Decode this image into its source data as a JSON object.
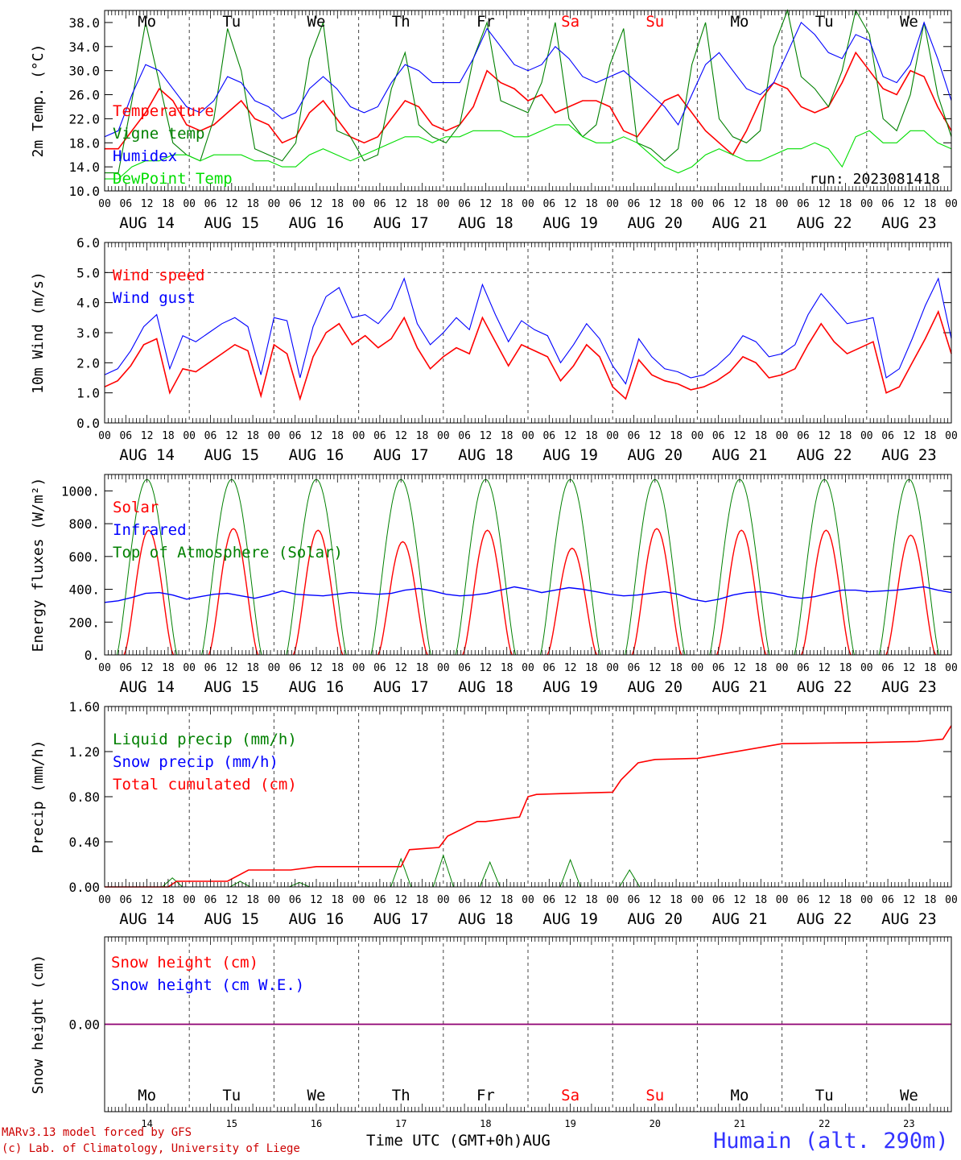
{
  "chart_data": {
    "type": "line",
    "days": [
      "14",
      "15",
      "16",
      "17",
      "18",
      "19",
      "20",
      "21",
      "22",
      "23"
    ],
    "day_names": [
      "Mo",
      "Tu",
      "We",
      "Th",
      "Fr",
      "Sa",
      "Su",
      "Mo",
      "Tu",
      "We"
    ],
    "weekend_days": [
      5,
      6
    ],
    "hour_ticks": [
      "00",
      "06",
      "12",
      "18"
    ],
    "hour_end": "00",
    "date_labels": [
      "AUG 14",
      "AUG 15",
      "AUG 16",
      "AUG 17",
      "AUG 18",
      "AUG 19",
      "AUG 20",
      "AUG 21",
      "AUG 22",
      "AUG 23"
    ],
    "panels": [
      {
        "id": "temperature",
        "ylabel": "2m Temp. (°C)",
        "ylim": [
          10,
          40
        ],
        "yticks": [
          "10.0",
          "14.0",
          "18.0",
          "22.0",
          "26.0",
          "30.0",
          "34.0",
          "38.0"
        ],
        "annotation": "run: 2023081418",
        "series": [
          {
            "name": "Temperature",
            "color": "#ff0000",
            "values": [
              17,
              17,
              20,
              23,
              27,
              25,
              21,
              20,
              21,
              23,
              25,
              22,
              21,
              18,
              19,
              23,
              25,
              22,
              19,
              18,
              19,
              22,
              25,
              24,
              21,
              20,
              21,
              24,
              30,
              28,
              27,
              25,
              26,
              23,
              24,
              25,
              25,
              24,
              20,
              19,
              22,
              25,
              26,
              23,
              20,
              18,
              16,
              20,
              25,
              28,
              27,
              24,
              23,
              24,
              28,
              33,
              30,
              27,
              26,
              30,
              29,
              24,
              20
            ]
          },
          {
            "name": "Vigne temp",
            "color": "#008000",
            "values": [
              13,
              13,
              25,
              38,
              28,
              18,
              16,
              15,
              22,
              37,
              30,
              17,
              16,
              15,
              18,
              32,
              38,
              20,
              19,
              15,
              16,
              27,
              33,
              21,
              19,
              18,
              21,
              32,
              38,
              25,
              24,
              23,
              28,
              38,
              22,
              19,
              21,
              31,
              37,
              18,
              17,
              15,
              17,
              31,
              38,
              22,
              19,
              18,
              20,
              34,
              40,
              29,
              27,
              24,
              30,
              40,
              36,
              22,
              20,
              26,
              38,
              26,
              19
            ]
          },
          {
            "name": "Humidex",
            "color": "#0000ff",
            "values": [
              19,
              20,
              26,
              31,
              30,
              27,
              24,
              23,
              25,
              29,
              28,
              25,
              24,
              22,
              23,
              27,
              29,
              27,
              24,
              23,
              24,
              28,
              31,
              30,
              28,
              28,
              28,
              32,
              37,
              34,
              31,
              30,
              31,
              34,
              32,
              29,
              28,
              29,
              30,
              28,
              26,
              24,
              21,
              26,
              31,
              33,
              30,
              27,
              26,
              28,
              33,
              38,
              36,
              33,
              32,
              36,
              35,
              29,
              28,
              31,
              38,
              32,
              25
            ]
          },
          {
            "name": "DewPoint Temp",
            "color": "#00dd00",
            "values": [
              12,
              12,
              14,
              15,
              15,
              16,
              16,
              15,
              16,
              16,
              16,
              15,
              15,
              14,
              14,
              16,
              17,
              16,
              15,
              16,
              17,
              18,
              19,
              19,
              18,
              19,
              19,
              20,
              20,
              20,
              19,
              19,
              20,
              21,
              21,
              19,
              18,
              18,
              19,
              18,
              16,
              14,
              13,
              14,
              16,
              17,
              16,
              15,
              15,
              16,
              17,
              17,
              18,
              17,
              14,
              19,
              20,
              18,
              18,
              20,
              20,
              18,
              17
            ]
          }
        ]
      },
      {
        "id": "wind",
        "ylabel": "10m Wind (m/s)",
        "ylim": [
          0,
          6
        ],
        "yticks": [
          "0.0",
          "1.0",
          "2.0",
          "3.0",
          "4.0",
          "5.0",
          "6.0"
        ],
        "dashed_at": 5,
        "series": [
          {
            "name": "Wind speed",
            "color": "#ff0000",
            "values": [
              1.2,
              1.4,
              1.9,
              2.6,
              2.8,
              1.0,
              1.8,
              1.7,
              2.0,
              2.3,
              2.6,
              2.4,
              0.9,
              2.6,
              2.3,
              0.8,
              2.2,
              3.0,
              3.3,
              2.6,
              2.9,
              2.5,
              2.8,
              3.5,
              2.5,
              1.8,
              2.2,
              2.5,
              2.3,
              3.5,
              2.7,
              1.9,
              2.6,
              2.4,
              2.2,
              1.4,
              1.9,
              2.6,
              2.2,
              1.2,
              0.8,
              2.1,
              1.6,
              1.4,
              1.3,
              1.1,
              1.2,
              1.4,
              1.7,
              2.2,
              2.0,
              1.5,
              1.6,
              1.8,
              2.6,
              3.3,
              2.7,
              2.3,
              2.5,
              2.7,
              1.0,
              1.2,
              2.0,
              2.8,
              3.7,
              2.3
            ]
          },
          {
            "name": "Wind gust",
            "color": "#0000ff",
            "values": [
              1.6,
              1.8,
              2.4,
              3.2,
              3.6,
              1.8,
              2.9,
              2.7,
              3.0,
              3.3,
              3.5,
              3.2,
              1.6,
              3.5,
              3.4,
              1.5,
              3.2,
              4.2,
              4.5,
              3.5,
              3.6,
              3.3,
              3.8,
              4.8,
              3.3,
              2.6,
              3.0,
              3.5,
              3.1,
              4.6,
              3.6,
              2.7,
              3.4,
              3.1,
              2.9,
              2.0,
              2.6,
              3.3,
              2.8,
              1.9,
              1.3,
              2.8,
              2.2,
              1.8,
              1.7,
              1.5,
              1.6,
              1.9,
              2.3,
              2.9,
              2.7,
              2.2,
              2.3,
              2.6,
              3.6,
              4.3,
              3.8,
              3.3,
              3.4,
              3.5,
              1.5,
              1.8,
              2.8,
              3.9,
              4.8,
              2.8
            ]
          }
        ]
      },
      {
        "id": "energy",
        "ylabel": "Energy fluxes (W/m²)",
        "ylim": [
          0,
          1100
        ],
        "yticks": [
          "0.",
          "200.",
          "400.",
          "600.",
          "800.",
          "1000."
        ],
        "solar_peaks": [
          760,
          770,
          760,
          690,
          760,
          650,
          770,
          760,
          760,
          730
        ],
        "toa_peak": 1070,
        "series": [
          {
            "name": "Solar",
            "color": "#ff0000"
          },
          {
            "name": "Infrared",
            "color": "#0000ff",
            "values": [
              320,
              330,
              350,
              375,
              380,
              365,
              340,
              355,
              370,
              375,
              360,
              345,
              365,
              390,
              370,
              365,
              360,
              370,
              380,
              375,
              370,
              375,
              395,
              405,
              390,
              370,
              360,
              365,
              375,
              395,
              415,
              400,
              380,
              395,
              410,
              400,
              385,
              370,
              360,
              365,
              375,
              385,
              370,
              340,
              325,
              340,
              365,
              380,
              385,
              375,
              355,
              345,
              355,
              375,
              395,
              395,
              385,
              390,
              395,
              405,
              415,
              395,
              380
            ]
          },
          {
            "name": "Top of Atmosphere (Solar)",
            "color": "#008000"
          }
        ]
      },
      {
        "id": "precip",
        "ylabel": "Precip (mm/h)",
        "ylim": [
          0,
          1.6
        ],
        "yticks": [
          "0.00",
          "0.40",
          "0.80",
          "1.20",
          "1.60"
        ],
        "series": [
          {
            "name": "Liquid precip (mm/h)",
            "color": "#008000",
            "events": [
              [
                0.8,
                0.08
              ],
              [
                1.6,
                0.05
              ],
              [
                2.3,
                0.04
              ],
              [
                3.5,
                0.25
              ],
              [
                4.0,
                0.28
              ],
              [
                4.55,
                0.22
              ],
              [
                5.5,
                0.24
              ],
              [
                6.2,
                0.15
              ]
            ]
          },
          {
            "name": "Snow precip (mm/h)",
            "color": "#0000ff",
            "values": [
              0,
              0
            ]
          },
          {
            "name": "Total cumulated (cm)",
            "color": "#ff0000",
            "x": [
              0,
              0.75,
              0.85,
              1.45,
              1.7,
              2.2,
              2.5,
              3.0,
              3.5,
              3.6,
              3.95,
              4.05,
              4.4,
              4.5,
              4.9,
              5.0,
              5.1,
              5.5,
              6.0,
              6.1,
              6.3,
              6.5,
              7.0,
              8.0,
              9.0,
              9.6,
              9.9,
              10
            ],
            "values": [
              0,
              0,
              0.05,
              0.05,
              0.15,
              0.15,
              0.18,
              0.18,
              0.18,
              0.33,
              0.35,
              0.45,
              0.58,
              0.58,
              0.62,
              0.8,
              0.82,
              0.83,
              0.84,
              0.95,
              1.1,
              1.13,
              1.14,
              1.27,
              1.28,
              1.29,
              1.31,
              1.43
            ]
          }
        ]
      },
      {
        "id": "snow",
        "ylabel": "Snow height (cm)",
        "ylim": [
          -1,
          1
        ],
        "yticks": [
          "0.00"
        ],
        "series": [
          {
            "name": "Snow height (cm)",
            "color": "#ff0000",
            "values": [
              0,
              0
            ]
          },
          {
            "name": "Snow height (cm W.E.)",
            "color": "#0000ff",
            "values": [
              0,
              0
            ]
          }
        ]
      }
    ],
    "xlabel": "Time UTC (GMT+0h)",
    "month_label": "AUG"
  },
  "footer": {
    "model": "MARv3.13 model forced by GFS",
    "credit": "(c) Lab. of Climatology, University of Liege",
    "station": "Humain (alt. 290m)"
  },
  "colors": {
    "axis": "#000000",
    "weekend_label": "#ff0000",
    "station_label": "#3333ff",
    "snow_line": "#800080"
  }
}
